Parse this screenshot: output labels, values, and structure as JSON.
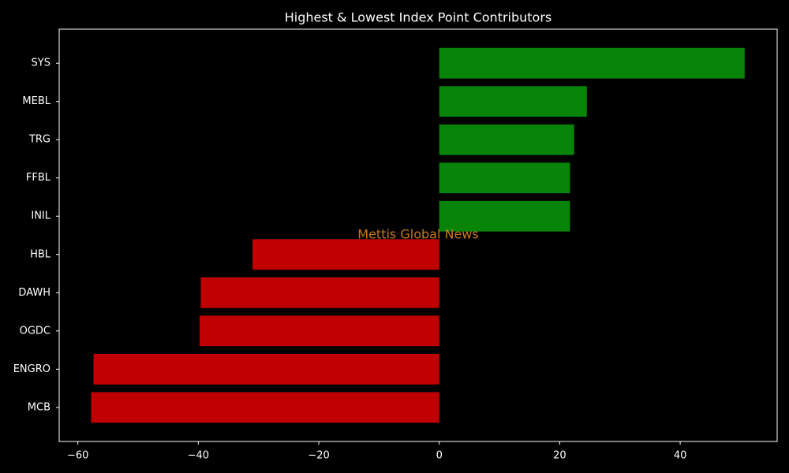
{
  "chart_data": {
    "type": "barh",
    "title": "Highest & Lowest Index Point Contributors",
    "watermark": "Mettis Global News",
    "categories": [
      "SYS",
      "MEBL",
      "TRG",
      "FFBL",
      "INIL",
      "HBL",
      "DAWH",
      "OGDC",
      "ENGRO",
      "MCB"
    ],
    "values": [
      50.7,
      24.5,
      22.4,
      21.7,
      21.7,
      -31.0,
      -39.6,
      -39.8,
      -57.4,
      -57.8
    ],
    "colors": [
      "#088508",
      "#088508",
      "#088508",
      "#088508",
      "#088508",
      "#c00000",
      "#c00000",
      "#c00000",
      "#c00000",
      "#c00000"
    ],
    "xlim": [
      -63.1,
      56.1
    ],
    "xticks": [
      {
        "value": -60,
        "label": "−60"
      },
      {
        "value": -40,
        "label": "−40"
      },
      {
        "value": -20,
        "label": "−20"
      },
      0,
      20,
      40
    ]
  }
}
